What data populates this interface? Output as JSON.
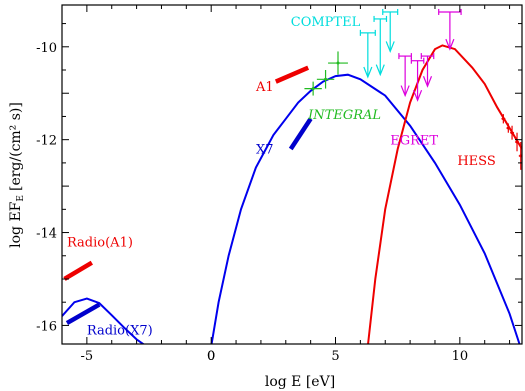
{
  "chart_data": {
    "type": "line",
    "xlabel": "log E [eV]",
    "ylabel": "log EF",
    "ylabel_sub": "E",
    "ylabel_units": "[erg/(cm² s)]",
    "xlim": [
      -6,
      12.5
    ],
    "ylim": [
      -16.4,
      -9.1
    ],
    "x_ticks": [
      -5,
      0,
      5,
      10
    ],
    "y_ticks": [
      -10,
      -12,
      -14,
      -16
    ],
    "grid": false,
    "curves": [
      {
        "id": "blue-sync-lowenergy",
        "color": "#0000ee",
        "points": [
          [
            -6,
            -15.8
          ],
          [
            -5.5,
            -15.5
          ],
          [
            -5,
            -15.42
          ],
          [
            -4.5,
            -15.52
          ],
          [
            -4,
            -15.78
          ],
          [
            -3.5,
            -16.05
          ],
          [
            -3,
            -16.3
          ],
          [
            -2.6,
            -16.45
          ]
        ]
      },
      {
        "id": "blue-sync-main",
        "color": "#0000ee",
        "points": [
          [
            0,
            -16.45
          ],
          [
            0.3,
            -15.5
          ],
          [
            0.7,
            -14.5
          ],
          [
            1.2,
            -13.5
          ],
          [
            1.8,
            -12.6
          ],
          [
            2.5,
            -11.9
          ],
          [
            3,
            -11.55
          ],
          [
            3.5,
            -11.2
          ],
          [
            4,
            -10.95
          ],
          [
            4.5,
            -10.75
          ],
          [
            5,
            -10.63
          ],
          [
            5.5,
            -10.6
          ],
          [
            6,
            -10.7
          ],
          [
            7,
            -11.05
          ],
          [
            8,
            -11.7
          ],
          [
            9,
            -12.5
          ],
          [
            10,
            -13.4
          ],
          [
            11,
            -14.45
          ],
          [
            12,
            -15.75
          ],
          [
            12.4,
            -16.4
          ]
        ]
      },
      {
        "id": "red-ic",
        "color": "#ee0000",
        "points": [
          [
            6.3,
            -16.45
          ],
          [
            6.6,
            -15
          ],
          [
            7,
            -13.5
          ],
          [
            7.5,
            -12.2
          ],
          [
            8,
            -11.2
          ],
          [
            8.5,
            -10.5
          ],
          [
            9,
            -10.05
          ],
          [
            9.3,
            -9.97
          ],
          [
            9.8,
            -10.05
          ],
          [
            10.5,
            -10.45
          ],
          [
            11,
            -10.8
          ],
          [
            11.5,
            -11.3
          ],
          [
            12,
            -11.75
          ],
          [
            12.5,
            -12.2
          ]
        ]
      }
    ],
    "segments": [
      {
        "id": "radio-a1",
        "color": "#ee0000",
        "from": [
          -5.9,
          -15.0
        ],
        "to": [
          -4.8,
          -14.65
        ]
      },
      {
        "id": "radio-x7",
        "color": "#0000cc",
        "from": [
          -5.8,
          -15.95
        ],
        "to": [
          -4.5,
          -15.55
        ]
      },
      {
        "id": "a1-xray",
        "color": "#ee0000",
        "from": [
          2.6,
          -10.75
        ],
        "to": [
          3.9,
          -10.45
        ]
      },
      {
        "id": "x7-xray",
        "color": "#0000cc",
        "from": [
          3.2,
          -12.2
        ],
        "to": [
          4.0,
          -11.55
        ]
      }
    ],
    "integral_points": {
      "color": "#22bb22",
      "points": [
        {
          "x": 4.1,
          "y": -10.9,
          "xerr": 0.35,
          "yerr": 0.15
        },
        {
          "x": 4.6,
          "y": -10.7,
          "xerr": 0.35,
          "yerr": 0.2
        },
        {
          "x": 5.1,
          "y": -10.35,
          "xerr": 0.4,
          "yerr": 0.25
        }
      ]
    },
    "comptel_limits": {
      "color": "#00dddd",
      "points": [
        {
          "x": 6.3,
          "y": -9.7,
          "xerr": 0.3,
          "tail": 0.95
        },
        {
          "x": 6.8,
          "y": -9.4,
          "xerr": 0.25,
          "tail": 1.2
        },
        {
          "x": 7.2,
          "y": -9.25,
          "xerr": 0.3,
          "tail": 0.85
        }
      ]
    },
    "egret_limits": {
      "color": "#dd00dd",
      "points": [
        {
          "x": 7.8,
          "y": -10.2,
          "xerr": 0.25,
          "tail": 0.85
        },
        {
          "x": 8.3,
          "y": -10.3,
          "xerr": 0.25,
          "tail": 0.85
        },
        {
          "x": 8.7,
          "y": -10.2,
          "xerr": 0.25,
          "tail": 0.65
        },
        {
          "x": 9.6,
          "y": -9.25,
          "xerr": 0.45,
          "tail": 0.8
        }
      ]
    },
    "hess_points": {
      "color": "#ee0000",
      "points": [
        {
          "x": 11.75,
          "y": -11.55,
          "xerr": 0.08,
          "yerr": 0.1
        },
        {
          "x": 11.95,
          "y": -11.75,
          "xerr": 0.08,
          "yerr": 0.1
        },
        {
          "x": 12.1,
          "y": -11.85,
          "xerr": 0.08,
          "yerr": 0.15
        },
        {
          "x": 12.3,
          "y": -12.05,
          "xerr": 0.08,
          "yerr": 0.2
        },
        {
          "x": 12.45,
          "y": -12.35,
          "xerr": 0.08,
          "yerr": 0.3
        }
      ]
    },
    "annotations": [
      {
        "id": "label-comptel",
        "text": "COMPTEL",
        "color": "#00dddd",
        "x": 3.2,
        "y": -9.55,
        "italic": false
      },
      {
        "id": "label-a1",
        "text": "A1",
        "color": "#ee0000",
        "x": 1.8,
        "y": -10.95,
        "italic": false
      },
      {
        "id": "label-integral",
        "text": "INTEGRAL",
        "color": "#22bb22",
        "x": 3.9,
        "y": -11.55,
        "italic": true
      },
      {
        "id": "label-x7",
        "text": "X7",
        "color": "#0000cc",
        "x": 1.8,
        "y": -12.3,
        "italic": false
      },
      {
        "id": "label-egret",
        "text": "EGRET",
        "color": "#dd00dd",
        "x": 7.2,
        "y": -12.1,
        "italic": false
      },
      {
        "id": "label-hess",
        "text": "HESS",
        "color": "#ee0000",
        "x": 9.9,
        "y": -12.55,
        "italic": false
      },
      {
        "id": "label-radio-a1",
        "text": "Radio(A1)",
        "color": "#ee0000",
        "x": -5.8,
        "y": -14.3,
        "italic": false
      },
      {
        "id": "label-radio-x7",
        "text": "Radio(X7)",
        "color": "#0000cc",
        "x": -5.0,
        "y": -16.2,
        "italic": false
      }
    ]
  }
}
